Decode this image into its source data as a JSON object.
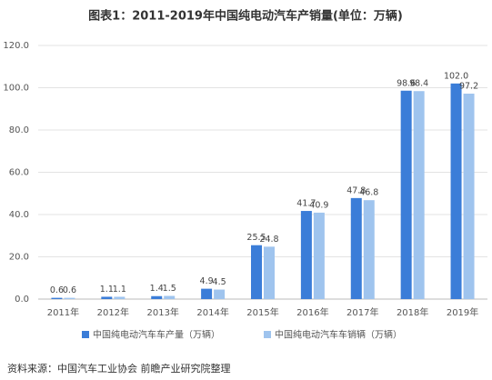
{
  "chart_data": {
    "type": "bar",
    "title": "图表1：2011-2019年中国纯电动汽车产销量(单位：万辆)",
    "source": "资料来源：中国汽车工业协会 前瞻产业研究院整理",
    "categories": [
      "2011年",
      "2012年",
      "2013年",
      "2014年",
      "2015年",
      "2016年",
      "2017年",
      "2018年",
      "2019年"
    ],
    "series": [
      {
        "name": "中国纯电动汽车车产量（万辆）",
        "color": "#3b7dd8",
        "values": [
          0.6,
          1.1,
          1.4,
          4.9,
          25.5,
          41.7,
          47.8,
          98.6,
          102.0
        ],
        "value_labels": [
          "0.6",
          "1.1",
          "1.4",
          "4.9",
          "25.5",
          "41.7",
          "47.8",
          "98.6",
          "102.0"
        ]
      },
      {
        "name": "中国纯电动汽车车销辆（万辆）",
        "color": "#9fc4ee",
        "values": [
          0.6,
          1.1,
          1.5,
          4.5,
          24.8,
          40.9,
          46.8,
          98.4,
          97.2
        ],
        "value_labels": [
          "0.6",
          "1.1",
          "1.5",
          "4.5",
          "24.8",
          "40.9",
          "46.8",
          "98.4",
          "97.2"
        ]
      }
    ],
    "ylim": [
      0,
      120
    ],
    "yticks": [
      {
        "value": 0,
        "label": "0.0"
      },
      {
        "value": 20,
        "label": "20.0"
      },
      {
        "value": 40,
        "label": "40.0"
      },
      {
        "value": 60,
        "label": "60.0"
      },
      {
        "value": 80,
        "label": "80.0"
      },
      {
        "value": 100,
        "label": "100.0"
      },
      {
        "value": 120,
        "label": "120.0"
      }
    ],
    "grid": true,
    "legend": "bottom"
  }
}
